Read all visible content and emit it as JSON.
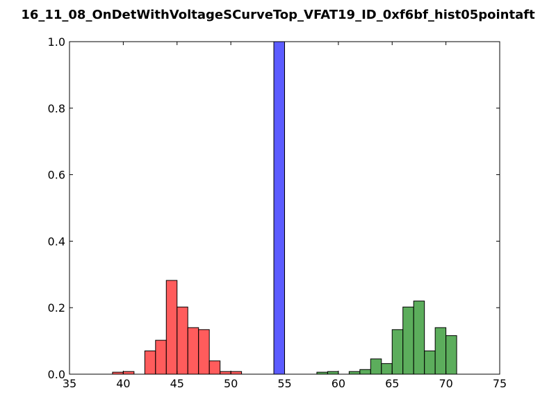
{
  "chart_data": {
    "type": "bar",
    "title": "16_11_08_OnDetWithVoltageSCurveTop_VFAT19_ID_0xf6bf_hist05pointaft",
    "xlabel": "",
    "ylabel": "",
    "xlim": [
      35,
      75
    ],
    "ylim": [
      0,
      1.0
    ],
    "x_ticks": [
      "35",
      "40",
      "45",
      "50",
      "55",
      "60",
      "65",
      "70",
      "75"
    ],
    "y_ticks": [
      "0.0",
      "0.2",
      "0.4",
      "0.6",
      "0.8",
      "1.0"
    ],
    "grid": false,
    "bin_width": 1,
    "series": [
      {
        "color": "#ff3333",
        "x": [
          39,
          40,
          42,
          43,
          44,
          45,
          46,
          47,
          48,
          49,
          50
        ],
        "values": [
          0.006,
          0.008,
          0.07,
          0.102,
          0.282,
          0.202,
          0.14,
          0.134,
          0.04,
          0.008,
          0.008
        ]
      },
      {
        "color": "#3333ff",
        "x": [
          54
        ],
        "values": [
          1.0
        ]
      },
      {
        "color": "#339933",
        "x": [
          58,
          59,
          61,
          62,
          63,
          64,
          65,
          66,
          67,
          68,
          69,
          70
        ],
        "values": [
          0.006,
          0.008,
          0.008,
          0.014,
          0.046,
          0.032,
          0.134,
          0.202,
          0.22,
          0.07,
          0.14,
          0.116
        ]
      }
    ]
  }
}
